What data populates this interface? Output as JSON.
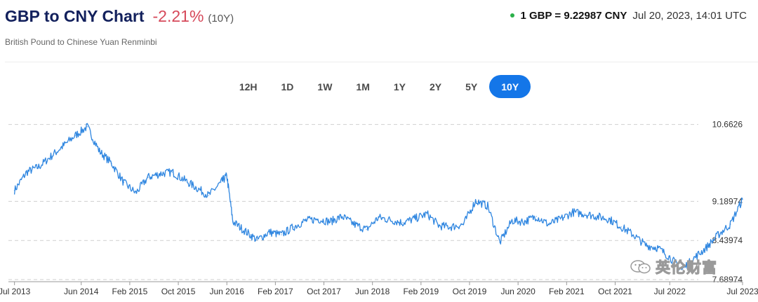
{
  "header": {
    "title": "GBP to CNY Chart",
    "change": "-2.21%",
    "period": "(10Y)",
    "subtitle": "British Pound to Chinese Yuan Renminbi",
    "rate": "1 GBP = 9.22987 CNY",
    "timestamp": "Jul 20, 2023, 14:01 UTC",
    "status_color": "#2bb04a"
  },
  "ranges": [
    {
      "label": "12H",
      "active": false
    },
    {
      "label": "1D",
      "active": false
    },
    {
      "label": "1W",
      "active": false
    },
    {
      "label": "1M",
      "active": false
    },
    {
      "label": "1Y",
      "active": false
    },
    {
      "label": "2Y",
      "active": false
    },
    {
      "label": "5Y",
      "active": false
    },
    {
      "label": "10Y",
      "active": true
    }
  ],
  "watermark": {
    "text": "英伦财富",
    "icon": "wechat-icon"
  },
  "chart_data": {
    "type": "line",
    "title": "",
    "xlabel": "",
    "ylabel": "",
    "line_color": "#2f86e0",
    "grid": "dashed horizontal",
    "y_ticks": [
      "10.6626",
      "9.18974",
      "8.43974",
      "7.68974"
    ],
    "y_tick_values": [
      10.6626,
      9.18974,
      8.43974,
      7.68974
    ],
    "ylim": [
      7.65,
      10.9
    ],
    "x_ticks": [
      "Jul 2013",
      "Jun 2014",
      "Feb 2015",
      "Oct 2015",
      "Jun 2016",
      "Feb 2017",
      "Oct 2017",
      "Jun 2018",
      "Feb 2019",
      "Oct 2019",
      "Jun 2020",
      "Feb 2021",
      "Oct 2021",
      "Jul 2022",
      "Jul 2023"
    ],
    "x_tick_dates": [
      "2013-07",
      "2014-06",
      "2015-02",
      "2015-10",
      "2016-06",
      "2017-02",
      "2017-10",
      "2018-06",
      "2019-02",
      "2019-10",
      "2020-06",
      "2021-02",
      "2021-10",
      "2022-07",
      "2023-07"
    ],
    "x": [
      "2013-07",
      "2013-09",
      "2013-11",
      "2014-01",
      "2014-03",
      "2014-05",
      "2014-07",
      "2014-09",
      "2014-11",
      "2015-01",
      "2015-03",
      "2015-05",
      "2015-07",
      "2015-09",
      "2015-11",
      "2016-01",
      "2016-03",
      "2016-05",
      "2016-06",
      "2016-07",
      "2016-09",
      "2016-11",
      "2017-01",
      "2017-03",
      "2017-05",
      "2017-07",
      "2017-09",
      "2017-11",
      "2018-01",
      "2018-03",
      "2018-05",
      "2018-07",
      "2018-09",
      "2018-11",
      "2019-01",
      "2019-03",
      "2019-05",
      "2019-07",
      "2019-09",
      "2019-11",
      "2020-01",
      "2020-03",
      "2020-05",
      "2020-07",
      "2020-09",
      "2020-11",
      "2021-01",
      "2021-03",
      "2021-05",
      "2021-07",
      "2021-09",
      "2021-11",
      "2022-01",
      "2022-03",
      "2022-05",
      "2022-07",
      "2022-09",
      "2022-11",
      "2023-01",
      "2023-03",
      "2023-05",
      "2023-07"
    ],
    "values": [
      9.4,
      9.75,
      9.85,
      10.05,
      10.25,
      10.45,
      10.62,
      10.15,
      9.92,
      9.55,
      9.35,
      9.65,
      9.72,
      9.75,
      9.6,
      9.45,
      9.3,
      9.55,
      9.68,
      8.8,
      8.62,
      8.45,
      8.6,
      8.55,
      8.7,
      8.82,
      8.85,
      8.8,
      8.9,
      8.75,
      8.65,
      8.88,
      8.83,
      8.78,
      8.86,
      8.95,
      8.72,
      8.7,
      8.75,
      9.2,
      9.1,
      8.4,
      8.82,
      8.8,
      8.9,
      8.75,
      8.85,
      8.98,
      8.95,
      8.9,
      8.85,
      8.7,
      8.55,
      8.35,
      8.3,
      8.12,
      7.88,
      8.1,
      8.3,
      8.55,
      8.75,
      9.23
    ]
  }
}
